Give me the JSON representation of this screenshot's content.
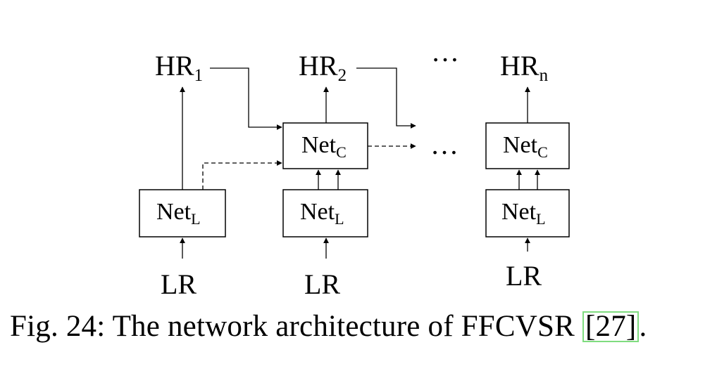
{
  "diagram": {
    "outputs": [
      {
        "base": "HR",
        "sub": "1"
      },
      {
        "base": "HR",
        "sub": "2"
      },
      {
        "base": "HR",
        "sub": "n"
      }
    ],
    "inputs": [
      "LR",
      "LR",
      "LR"
    ],
    "local_net": {
      "base": "Net",
      "sub": "L"
    },
    "context_net": {
      "base": "Net",
      "sub": "C"
    },
    "ellipsis": "…"
  },
  "caption": {
    "text": "Fig. 24: The network architecture of FFCVSR ",
    "ref": "[27]",
    "end": "."
  }
}
